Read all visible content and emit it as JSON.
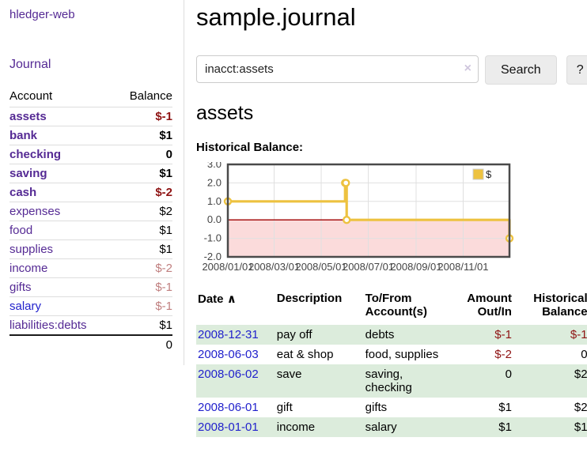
{
  "app": {
    "title": "hledger-web",
    "nav_journal": "Journal"
  },
  "sidebar": {
    "headers": {
      "account": "Account",
      "balance": "Balance"
    },
    "accounts": [
      {
        "name": "assets",
        "indent": 1,
        "bold": true,
        "balance": "$-1"
      },
      {
        "name": "bank",
        "indent": 2,
        "bold": true,
        "balance": "$1"
      },
      {
        "name": "checking",
        "indent": 3,
        "bold": true,
        "balance": "0"
      },
      {
        "name": "saving",
        "indent": 3,
        "bold": true,
        "balance": "$1"
      },
      {
        "name": "cash",
        "indent": 2,
        "bold": true,
        "balance": "$-2"
      },
      {
        "name": "expenses",
        "indent": 1,
        "bold": false,
        "balance": "$2"
      },
      {
        "name": "food",
        "indent": 2,
        "bold": false,
        "balance": "$1"
      },
      {
        "name": "supplies",
        "indent": 2,
        "bold": false,
        "balance": "$1"
      },
      {
        "name": "income",
        "indent": 1,
        "bold": false,
        "balance": "$-2"
      },
      {
        "name": "gifts",
        "indent": 2,
        "bold": false,
        "balance": "$-1"
      },
      {
        "name": "salary",
        "indent": 2,
        "bold": false,
        "balance": "$-1",
        "link_style": "unvisited"
      },
      {
        "name": "liabilities:debts",
        "indent": 1,
        "bold": false,
        "balance": "$1"
      }
    ],
    "total": "0"
  },
  "header": {
    "title": "sample.journal"
  },
  "search": {
    "value": "inacct:assets",
    "clear_icon": "×",
    "button": "Search",
    "help_button": "?"
  },
  "account_page": {
    "title": "assets",
    "chart_label": "Historical Balance:"
  },
  "chart_data": {
    "type": "line",
    "title": "Historical Balance",
    "step": true,
    "series": [
      {
        "name": "$",
        "color": "#edc240",
        "points": [
          [
            "2008-01-01",
            1
          ],
          [
            "2008-06-01",
            2
          ],
          [
            "2008-06-02",
            2
          ],
          [
            "2008-06-03",
            0
          ],
          [
            "2008-12-31",
            -1
          ]
        ]
      }
    ],
    "xlim": [
      "2008-01-01",
      "2008-12-31"
    ],
    "ylim": [
      -2,
      3
    ],
    "yticks": [
      {
        "value": 3,
        "label": "3.0"
      },
      {
        "value": 2,
        "label": "2.0"
      },
      {
        "value": 1,
        "label": "1.0"
      },
      {
        "value": 0,
        "label": "0.0"
      },
      {
        "value": -1,
        "label": "-1.0"
      },
      {
        "value": -2,
        "label": "-2.0"
      }
    ],
    "xticks": [
      {
        "date": "2008-01-01",
        "label": "2008/01/01"
      },
      {
        "date": "2008-03-01",
        "label": "2008/03/01"
      },
      {
        "date": "2008-05-01",
        "label": "2008/05/01"
      },
      {
        "date": "2008-07-01",
        "label": "2008/07/01"
      },
      {
        "date": "2008-09-01",
        "label": "2008/09/01"
      },
      {
        "date": "2008-11-01",
        "label": "2008/11/01"
      }
    ],
    "grid": true,
    "legend_position": "top-right",
    "negative_fill": "#fbdbdb",
    "zero_line_color": "#a00000"
  },
  "register_table": {
    "headers": [
      "Date",
      "Description",
      "To/From Account(s)",
      "Amount Out/In",
      "Historical Balance"
    ],
    "sort_indicator": "∧",
    "rows": [
      {
        "date": "2008-12-31",
        "description": "pay off",
        "accounts": "debts",
        "amount": "$-1",
        "balance": "$-1"
      },
      {
        "date": "2008-06-03",
        "description": "eat & shop",
        "accounts": "food, supplies",
        "amount": "$-2",
        "balance": "0"
      },
      {
        "date": "2008-06-02",
        "description": "save",
        "accounts": "saving, checking",
        "amount": "0",
        "balance": "$2"
      },
      {
        "date": "2008-06-01",
        "description": "gift",
        "accounts": "gifts",
        "amount": "$1",
        "balance": "$2"
      },
      {
        "date": "2008-01-01",
        "description": "income",
        "accounts": "salary",
        "amount": "$1",
        "balance": "$1"
      }
    ]
  }
}
